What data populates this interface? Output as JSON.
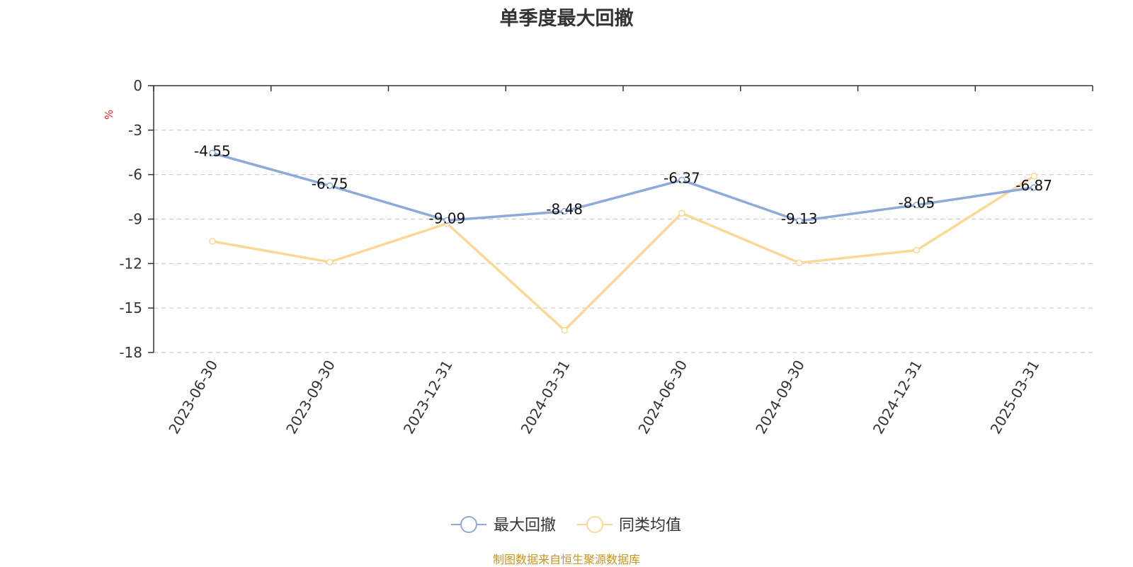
{
  "chart_data": {
    "type": "line",
    "title": "单季度最大回撤",
    "ylabel": "%",
    "categories": [
      "2023-06-30",
      "2023-09-30",
      "2023-12-31",
      "2024-03-31",
      "2024-06-30",
      "2024-09-30",
      "2024-12-31",
      "2025-03-31"
    ],
    "ylim": [
      -18,
      0
    ],
    "yticks": [
      0,
      -3,
      -6,
      -9,
      -12,
      -15,
      -18
    ],
    "grid": true,
    "legend_position": "bottom",
    "series": [
      {
        "name": "最大回撤",
        "color": "#8eaad8",
        "values": [
          -4.55,
          -6.75,
          -9.09,
          -8.48,
          -6.37,
          -9.13,
          -8.05,
          -6.87
        ],
        "show_labels": true
      },
      {
        "name": "同类均值",
        "color": "#fbd895",
        "values": [
          -10.5,
          -11.9,
          -9.3,
          -16.5,
          -8.6,
          -11.95,
          -11.1,
          -6.1
        ],
        "show_labels": false
      }
    ]
  },
  "colors": {
    "axis": "#333333",
    "grid": "#cccccc",
    "unit_label": "#e8252a"
  },
  "footer": {
    "source": "制图数据来自恒生聚源数据库"
  }
}
